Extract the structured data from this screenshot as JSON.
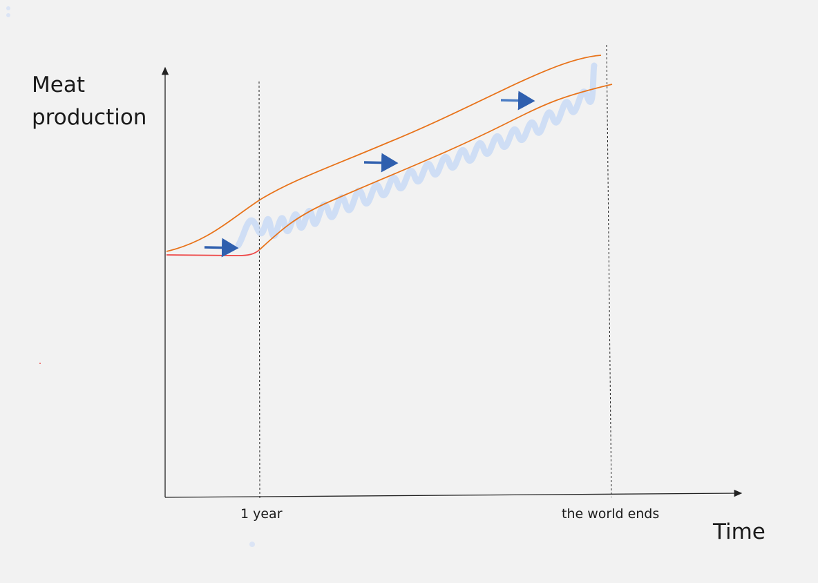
{
  "y_axis_label": "Meat production",
  "x_axis_label": "Time",
  "markers": [
    "1 year",
    "the world ends"
  ]
}
